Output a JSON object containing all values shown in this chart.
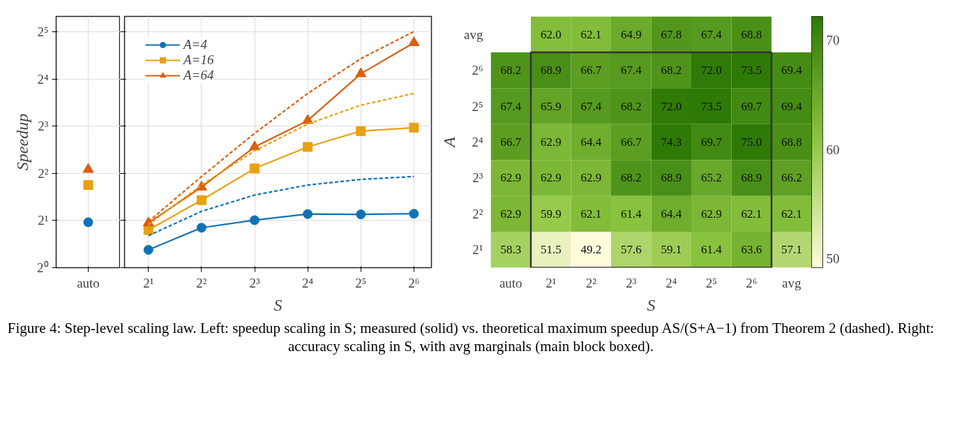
{
  "chart_data": [
    {
      "type": "scatter",
      "ylabel": "Speedup",
      "categories": [
        "auto"
      ],
      "log": "y",
      "ylim": [
        1,
        40.2
      ],
      "yticks": [
        {
          "value": 1,
          "label": "2⁰"
        },
        {
          "value": 2,
          "label": "2¹"
        },
        {
          "value": 4,
          "label": "2²"
        },
        {
          "value": 8,
          "label": "2³"
        },
        {
          "value": 16,
          "label": "2⁴"
        },
        {
          "value": 32,
          "label": "2⁵"
        }
      ],
      "grid": true,
      "annotations": [
        "Figure 4: Step-level scaling law. Left: speedup scaling in S; measured (solid) vs. theoretical maximum speedup AS/(S+A−1) from Theorem 2 (dashed). Right: accuracy scaling in S, with avg marginals (main block boxed)."
      ],
      "series": [
        {
          "color": "#0f72b5",
          "marker": "circle",
          "values": [
            1.95
          ]
        },
        {
          "color": "#e8a10f",
          "marker": "square",
          "values": [
            3.37
          ]
        },
        {
          "color": "#d95f0e",
          "marker": "triangle",
          "values": [
            4.24
          ]
        }
      ]
    },
    {
      "type": "line",
      "xlabel": "S",
      "categories": [
        "2¹",
        "2²",
        "2³",
        "2⁴",
        "2⁵",
        "2⁶"
      ],
      "log": "y",
      "ylim": [
        1,
        40.2
      ],
      "yticks": [
        {
          "value": 1,
          "label": null
        },
        {
          "value": 2,
          "label": null
        },
        {
          "value": 4,
          "label": null
        },
        {
          "value": 8,
          "label": null
        },
        {
          "value": 16,
          "label": null
        },
        {
          "value": 32,
          "label": null
        }
      ],
      "tick_labels": "x",
      "grid": true,
      "legend": "top left",
      "series": [
        {
          "name": "A=4",
          "color": "#0f72b5",
          "marker": "circle",
          "line_style": "solid",
          "values": [
            1.3,
            1.8,
            2.01,
            2.2,
            2.19,
            2.21
          ]
        },
        {
          "name": "A=16",
          "color": "#e8a10f",
          "marker": "square",
          "line_style": "solid",
          "values": [
            1.74,
            2.7,
            4.3,
            5.9,
            7.45,
            7.84
          ]
        },
        {
          "name": "A=64",
          "color": "#d95f0e",
          "marker": "triangle",
          "line_style": "solid",
          "values": [
            1.93,
            3.27,
            5.9,
            8.7,
            17.3,
            27.3
          ]
        },
        {
          "color": "#0f72b5",
          "marker": "none",
          "line_style": "dashed",
          "values": [
            1.6,
            2.29,
            2.91,
            3.37,
            3.66,
            3.82
          ]
        },
        {
          "color": "#e8a10f",
          "marker": "none",
          "line_style": "dashed",
          "values": [
            1.88,
            3.37,
            5.57,
            8.26,
            10.9,
            12.96
          ]
        },
        {
          "color": "#d95f0e",
          "marker": "none",
          "line_style": "dashed",
          "values": [
            1.97,
            3.82,
            7.21,
            12.96,
            21.6,
            32.2
          ]
        }
      ]
    },
    {
      "type": "heatmap",
      "xlabel": "S",
      "ylabel": "A",
      "categories": [
        "auto",
        "2¹",
        "2²",
        "2³",
        "2⁴",
        "2⁵",
        "2⁶",
        "avg"
      ],
      "y_categories": [
        "avg",
        "2⁶",
        "2⁵",
        "2⁴",
        "2³",
        "2²",
        "2¹"
      ],
      "colors": [
        "#fffcdc",
        "#8ec641",
        "#2e7a06"
      ],
      "clim": [
        49.2,
        72.2
      ],
      "cticks": [
        50,
        60,
        70
      ],
      "cell_labels": [
        [
          null,
          "62.0",
          "62.1",
          "64.9",
          "67.8",
          "67.4",
          "68.8",
          null
        ],
        [
          "68.2",
          "68.9",
          "66.7",
          "67.4",
          "68.2",
          "72.0",
          "73.5",
          "69.4"
        ],
        [
          "67.4",
          "65.9",
          "67.4",
          "68.2",
          "72.0",
          "73.5",
          "69.7",
          "69.4"
        ],
        [
          "66.7",
          "62.9",
          "64.4",
          "66.7",
          "74.3",
          "69.7",
          "75.0",
          "68.8"
        ],
        [
          "62.9",
          "62.9",
          "62.9",
          "68.2",
          "68.9",
          "65.2",
          "68.9",
          "66.2"
        ],
        [
          "62.9",
          "59.9",
          "62.1",
          "61.4",
          "64.4",
          "62.9",
          "62.1",
          "62.1"
        ],
        [
          "58.3",
          "51.5",
          "49.2",
          "57.6",
          "59.1",
          "61.4",
          "63.6",
          "57.1"
        ]
      ],
      "cells": [
        [
          null,
          62.0,
          62.1,
          64.9,
          67.8,
          67.4,
          68.8,
          null
        ],
        [
          68.2,
          68.9,
          66.7,
          67.4,
          68.2,
          72.0,
          73.5,
          69.4
        ],
        [
          67.4,
          65.9,
          67.4,
          68.2,
          72.0,
          73.5,
          69.7,
          69.4
        ],
        [
          66.7,
          62.9,
          64.4,
          66.7,
          74.3,
          69.7,
          75.0,
          68.8
        ],
        [
          62.9,
          62.9,
          62.9,
          68.2,
          68.9,
          65.2,
          68.9,
          66.2
        ],
        [
          62.9,
          59.9,
          62.1,
          61.4,
          64.4,
          62.9,
          62.1,
          62.1
        ],
        [
          58.3,
          51.5,
          49.2,
          57.6,
          59.1,
          61.4,
          63.6,
          57.1
        ]
      ]
    }
  ]
}
